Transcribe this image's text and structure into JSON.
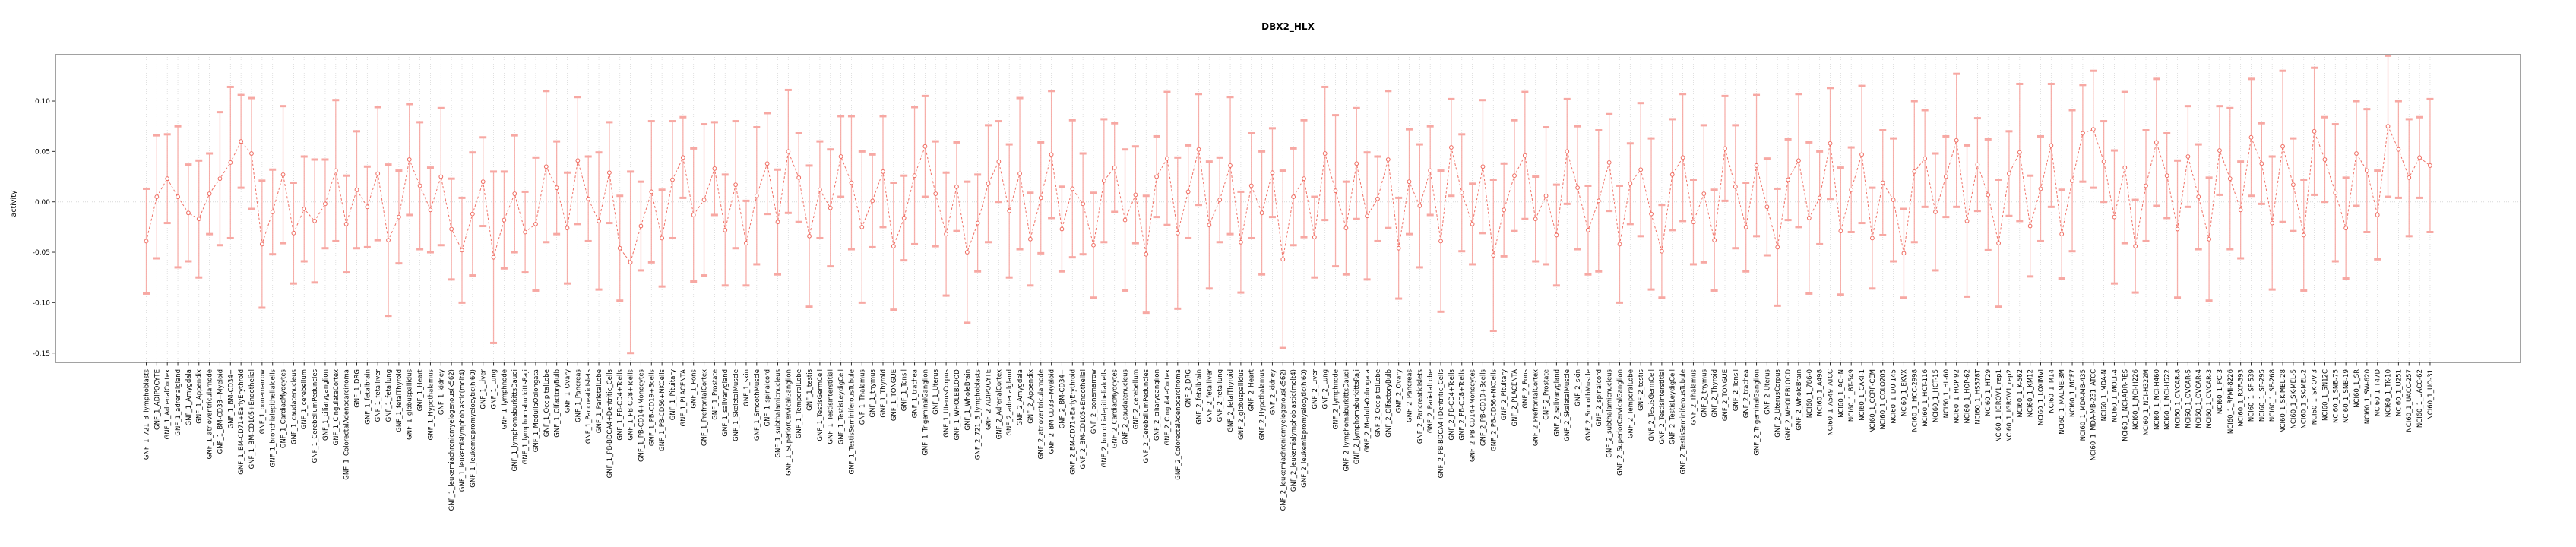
{
  "title": "DBX2_HLX",
  "chart_data": {
    "type": "line",
    "title": "DBX2_HLX",
    "xlabel": "",
    "ylabel": "activity",
    "ylim": [
      -0.159,
      0.146
    ],
    "yticks": [
      0.1,
      0.05,
      0.0,
      -0.05,
      -0.1,
      -0.15
    ],
    "grid": "dotted vertical gridline per category; dotted horizontal line at y=0",
    "legend_position": "none",
    "marker": "open-circle",
    "line_style": "dashed",
    "colors": {
      "line": "#ef6a5f",
      "marker": "#ef6a5f",
      "errorbar": "#f7a8a3",
      "gridline": "#d9d9d9",
      "box": "#8a8a8a"
    },
    "categories": [
      "GNF_1_721_B_lymphoblasts",
      "GNF_1_ADIPOCYTE",
      "GNF_1_AdrenalCortex",
      "GNF_1_adrenalgland",
      "GNF_1_Amygdala",
      "GNF_1_Appendix",
      "GNF_1_atrioventricularnode",
      "GNF_1_BM-CD33+Myeloid",
      "GNF_1_BM-CD34+",
      "GNF_1_BM-CD71+EarlyErythroid",
      "GNF_1_BM-CD105+Endothelial",
      "GNF_1_bonemarrow",
      "GNF_1_bronchialepithelialcells",
      "GNF_1_CardiacMyocytes",
      "GNF_1_caudatenucleus",
      "GNF_1_cerebellum",
      "GNF_1_CerebellumPeduncles",
      "GNF_1_ciliaryganglion",
      "GNF_1_CingulateCortex",
      "GNF_1_ColorectalAdenocarcinoma",
      "GNF_1_DRG",
      "GNF_1_fetalbrain",
      "GNF_1_fetalliver",
      "GNF_1_fetallung",
      "GNF_1_fetalThyroid",
      "GNF_1_globuspallidus",
      "GNF_1_Heart",
      "GNF_1_Hypothalamus",
      "GNF_1_kidney",
      "GNF_1_leukemiachronicmyelogenous(k562)",
      "GNF_1_leukemialymphoblastic(molt4)",
      "GNF_1_leukemiapromyelocytic(hl60)",
      "GNF_1_Liver",
      "GNF_1_Lung",
      "GNF_1_lymphnode",
      "GNF_1_lymphomaburkittsDaudi",
      "GNF_1_lymphomaburkittsRaji",
      "GNF_1_MedullaOblongata",
      "GNF_1_OccipitalLobe",
      "GNF_1_OlfactoryBulb",
      "GNF_1_Ovary",
      "GNF_1_Pancreas",
      "GNF_1_PancreaticIslets",
      "GNF_1_ParietalLobe",
      "GNF_1_PB-BDCA4+Dentritic_Cells",
      "GNF_1_PB-CD4+Tcells",
      "GNF_1_PB-CD8+Tcells",
      "GNF_1_PB-CD14+Monocytes",
      "GNF_1_PB-CD19+Bcells",
      "GNF_1_PB-CD56+NKCells",
      "GNF_1_Pituitary",
      "GNF_1_PLACENTA",
      "GNF_1_Pons",
      "GNF_1_PrefrontalCortex",
      "GNF_1_Prostate",
      "GNF_1_salivarygland",
      "GNF_1_SkeletalMuscle",
      "GNF_1_skin",
      "GNF_1_SmoothMuscle",
      "GNF_1_spinalcord",
      "GNF_1_subthalamicnucleus",
      "GNF_1_SuperiorCervicalGanglion",
      "GNF_1_TemporalLobe",
      "GNF_1_testis",
      "GNF_1_TestisGermCell",
      "GNF_1_TestisInterstitial",
      "GNF_1_TestisLeydigCell",
      "GNF_1_TestisSeminiferousTubule",
      "GNF_1_Thalamus",
      "GNF_1_thymus",
      "GNF_1_Thyroid",
      "GNF_1_TONGUE",
      "GNF_1_Tonsil",
      "GNF_1_trachea",
      "GNF_1_TrigeminalGanglion",
      "GNF_1_Uterus",
      "GNF_1_UterusCorpus",
      "GNF_1_WHOLEBLOOD",
      "GNF_1_WholeBrain",
      "GNF_2_721_B_lymphoblasts",
      "GNF_2_ADIPOCYTE",
      "GNF_2_AdrenalCortex",
      "GNF_2_adrenalgland",
      "GNF_2_Amygdala",
      "GNF_2_Appendix",
      "GNF_2_atrioventricularnode",
      "GNF_2_BM-CD33+Myeloid",
      "GNF_2_BM-CD34+",
      "GNF_2_BM-CD71+EarlyErythroid",
      "GNF_2_BM-CD105+Endothelial",
      "GNF_2_bonemarrow",
      "GNF_2_bronchialepithelialcells",
      "GNF_2_CardiacMyocytes",
      "GNF_2_caudatenucleus",
      "GNF_2_cerebellum",
      "GNF_2_CerebellumPeduncles",
      "GNF_2_ciliaryganglion",
      "GNF_2_CingulateCortex",
      "GNF_2_ColorectalAdenocarcinoma",
      "GNF_2_DRG",
      "GNF_2_fetalbrain",
      "GNF_2_fetalliver",
      "GNF_2_fetallung",
      "GNF_2_fetalThyroid",
      "GNF_2_globuspallidus",
      "GNF_2_Heart",
      "GNF_2_Hypothalamus",
      "GNF_2_kidney",
      "GNF_2_leukemiachronicmyelogenous(k562)",
      "GNF_2_leukemialymphoblastic(molt4)",
      "GNF_2_leukemiapromyelocytic(hl60)",
      "GNF_2_Liver",
      "GNF_2_Lung",
      "GNF_2_lymphnode",
      "GNF_2_lymphomaburkittsDaudi",
      "GNF_2_lymphomaburkittsRaji",
      "GNF_2_MedullaOblongata",
      "GNF_2_OccipitalLobe",
      "GNF_2_OlfactoryBulb",
      "GNF_2_Ovary",
      "GNF_2_Pancreas",
      "GNF_2_PancreaticIslets",
      "GNF_2_ParietalLobe",
      "GNF_2_PB-BDCA4+Dentritic_Cells",
      "GNF_2_PB-CD4+Tcells",
      "GNF_2_PB-CD8+Tcells",
      "GNF_2_PB-CD14+Monocytes",
      "GNF_2_PB-CD19+Bcells",
      "GNF_2_PB-CD56+NKCells",
      "GNF_2_Pituitary",
      "GNF_2_PLACENTA",
      "GNF_2_Pons",
      "GNF_2_PrefrontalCortex",
      "GNF_2_Prostate",
      "GNF_2_salivarygland",
      "GNF_2_SkeletalMuscle",
      "GNF_2_skin",
      "GNF_2_SmoothMuscle",
      "GNF_2_spinalcord",
      "GNF_2_subthalamicnucleus",
      "GNF_2_SuperiorCervicalGanglion",
      "GNF_2_TemporalLobe",
      "GNF_2_testis",
      "GNF_2_TestisGermCell",
      "GNF_2_TestisInterstitial",
      "GNF_2_TestisLeydigCell",
      "GNF_2_TestisSeminiferousTubule",
      "GNF_2_Thalamus",
      "GNF_2_thymus",
      "GNF_2_Thyroid",
      "GNF_2_TONGUE",
      "GNF_2_Tonsil",
      "GNF_2_trachea",
      "GNF_2_TrigeminalGanglion",
      "GNF_2_Uterus",
      "GNF_2_UterusCorpus",
      "GNF_2_WHOLEBLOOD",
      "GNF_2_WholeBrain",
      "NCI60_1_786-0",
      "NCI60_1_A498",
      "NCI60_1_A549_ATCC",
      "NCI60_1_ACHN",
      "NCI60_1_BT-549",
      "NCI60_1_CAKI-1",
      "NCI60_1_CCRF-CEM",
      "NCI60_1_COLO205",
      "NCI60_1_DU-145",
      "NCI60_1_EKVX",
      "NCI60_1_HCC-2998",
      "NCI60_1_HCT-116",
      "NCI60_1_HCT-15",
      "NCI60_1_HL-60",
      "NCI60_1_HOP-92",
      "NCI60_1_HOP-62",
      "NCI60_1_HS578T",
      "NCI60_1_HT29",
      "NCI60_1_IGROV1_rep1",
      "NCI60_1_IGROV1_rep2",
      "NCI60_1_K-562",
      "NCI60_1_KM12",
      "NCI60_1_LOXIMVI",
      "NCI60_1_M14",
      "NCI60_1_MALME-3M",
      "NCI60_1_MCF7",
      "NCI60_1_MDA-MB-435",
      "NCI60_1_MDA-MB-231_ATCC",
      "NCI60_1_MDA-N",
      "NCI60_1_MOLT-4",
      "NCI60_1_NCI-ADR-RES",
      "NCI60_1_NCI-H226",
      "NCI60_1_NCI-H322M",
      "NCI60_1_NCI-H460",
      "NCI60_1_NCI-H522",
      "NCI60_1_OVCAR-8",
      "NCI60_1_OVCAR-5",
      "NCI60_1_OVCAR-4",
      "NCI60_1_OVCAR-3",
      "NCI60_1_PC-3",
      "NCI60_1_RPMI-8226",
      "NCI60_1_RXF-393",
      "NCI60_1_SF-539",
      "NCI60_1_SF-295",
      "NCI60_1_SF-268",
      "NCI60_1_SK-MEL-28",
      "NCI60_1_SK-MEL-5",
      "NCI60_1_SK-MEL-2",
      "NCI60_1_SK-OV-3",
      "NCI60_1_SN12C",
      "NCI60_1_SNB-75",
      "NCI60_1_SNB-19",
      "NCI60_1_SR",
      "NCI60_1_SW-620",
      "NCI60_1_T47D",
      "NCI60_1_TK-10",
      "NCI60_1_U251",
      "NCI60_1_UACC-257",
      "NCI60_1_UACC-62",
      "NCI60_1_UO-31"
    ],
    "values": [
      -0.039,
      0.005,
      0.023,
      0.005,
      -0.011,
      -0.017,
      0.008,
      0.023,
      0.039,
      0.06,
      0.048,
      -0.042,
      -0.01,
      0.027,
      -0.031,
      -0.007,
      -0.019,
      -0.002,
      0.031,
      -0.022,
      0.012,
      -0.005,
      0.028,
      -0.038,
      -0.015,
      0.042,
      0.016,
      -0.008,
      0.025,
      -0.027,
      -0.048,
      -0.012,
      0.02,
      -0.055,
      -0.018,
      0.008,
      -0.03,
      -0.022,
      0.035,
      0.014,
      -0.026,
      0.041,
      0.003,
      -0.019,
      0.029,
      -0.046,
      -0.06,
      -0.024,
      0.01,
      -0.036,
      0.022,
      0.044,
      -0.013,
      0.002,
      0.033,
      -0.028,
      0.017,
      -0.041,
      0.006,
      0.038,
      -0.02,
      0.05,
      0.024,
      -0.034,
      0.012,
      -0.006,
      0.045,
      0.019,
      -0.025,
      0.001,
      0.03,
      -0.044,
      -0.016,
      0.026,
      0.055,
      0.008,
      -0.032,
      0.015,
      -0.05,
      -0.021,
      0.018,
      0.04,
      -0.009,
      0.028,
      -0.037,
      0.004,
      0.047,
      -0.027,
      0.013,
      -0.002,
      -0.043,
      0.021,
      0.034,
      -0.018,
      0.007,
      -0.052,
      0.025,
      0.043,
      -0.031,
      0.01,
      0.052,
      -0.023,
      0.002,
      0.036,
      -0.04,
      0.016,
      -0.011,
      0.029,
      -0.057,
      0.005,
      0.023,
      -0.035,
      0.048,
      0.011,
      -0.026,
      0.038,
      -0.014,
      0.003,
      0.042,
      -0.046,
      0.02,
      -0.004,
      0.031,
      -0.039,
      0.054,
      0.009,
      -0.022,
      0.035,
      -0.053,
      -0.008,
      0.026,
      0.046,
      -0.017,
      0.006,
      -0.033,
      0.05,
      0.014,
      -0.028,
      0.001,
      0.039,
      -0.042,
      0.018,
      0.032,
      -0.012,
      -0.049,
      0.027,
      0.044,
      -0.02,
      0.008,
      -0.038,
      0.053,
      0.015,
      -0.025,
      0.036,
      -0.005,
      -0.045,
      0.022,
      0.041,
      -0.016,
      0.004,
      0.058,
      -0.029,
      0.012,
      0.047,
      -0.036,
      0.019,
      0.002,
      -0.051,
      0.03,
      0.043,
      -0.01,
      0.025,
      0.061,
      -0.019,
      0.037,
      0.007,
      -0.041,
      0.028,
      0.049,
      -0.024,
      0.013,
      0.056,
      -0.032,
      0.021,
      0.068,
      0.072,
      0.04,
      -0.015,
      0.034,
      -0.044,
      0.016,
      0.059,
      0.026,
      -0.027,
      0.045,
      0.005,
      -0.037,
      0.051,
      0.023,
      -0.008,
      0.064,
      0.038,
      -0.021,
      0.055,
      0.017,
      -0.033,
      0.07,
      0.042,
      0.009,
      -0.026,
      0.048,
      0.031,
      -0.013,
      0.075,
      0.052,
      0.024,
      0.044,
      0.036
    ],
    "errors": [
      0.052,
      0.061,
      0.044,
      0.07,
      0.048,
      0.058,
      0.04,
      0.066,
      0.075,
      0.046,
      0.055,
      0.063,
      0.042,
      0.068,
      0.05,
      0.052,
      0.061,
      0.044,
      0.07,
      0.048,
      0.058,
      0.04,
      0.066,
      0.075,
      0.046,
      0.055,
      0.063,
      0.042,
      0.068,
      0.05,
      0.052,
      0.061,
      0.044,
      0.085,
      0.048,
      0.058,
      0.04,
      0.066,
      0.075,
      0.046,
      0.055,
      0.063,
      0.042,
      0.068,
      0.05,
      0.052,
      0.09,
      0.044,
      0.07,
      0.048,
      0.058,
      0.04,
      0.066,
      0.075,
      0.046,
      0.055,
      0.063,
      0.042,
      0.068,
      0.05,
      0.052,
      0.061,
      0.044,
      0.07,
      0.048,
      0.058,
      0.04,
      0.066,
      0.075,
      0.046,
      0.055,
      0.063,
      0.042,
      0.068,
      0.05,
      0.052,
      0.061,
      0.044,
      0.07,
      0.048,
      0.058,
      0.04,
      0.066,
      0.075,
      0.046,
      0.055,
      0.063,
      0.042,
      0.068,
      0.05,
      0.052,
      0.061,
      0.044,
      0.07,
      0.048,
      0.058,
      0.04,
      0.066,
      0.075,
      0.046,
      0.055,
      0.063,
      0.042,
      0.068,
      0.05,
      0.052,
      0.061,
      0.044,
      0.088,
      0.048,
      0.058,
      0.04,
      0.066,
      0.075,
      0.046,
      0.055,
      0.063,
      0.042,
      0.068,
      0.05,
      0.052,
      0.061,
      0.044,
      0.07,
      0.048,
      0.058,
      0.04,
      0.066,
      0.075,
      0.046,
      0.055,
      0.063,
      0.042,
      0.068,
      0.05,
      0.052,
      0.061,
      0.044,
      0.07,
      0.048,
      0.058,
      0.04,
      0.066,
      0.075,
      0.046,
      0.055,
      0.063,
      0.042,
      0.068,
      0.05,
      0.052,
      0.061,
      0.044,
      0.07,
      0.048,
      0.058,
      0.04,
      0.066,
      0.075,
      0.046,
      0.055,
      0.063,
      0.042,
      0.068,
      0.05,
      0.052,
      0.061,
      0.044,
      0.07,
      0.048,
      0.058,
      0.04,
      0.066,
      0.075,
      0.046,
      0.055,
      0.063,
      0.042,
      0.068,
      0.05,
      0.052,
      0.061,
      0.044,
      0.07,
      0.048,
      0.058,
      0.04,
      0.066,
      0.075,
      0.046,
      0.055,
      0.063,
      0.042,
      0.068,
      0.05,
      0.052,
      0.061,
      0.044,
      0.07,
      0.048,
      0.058,
      0.04,
      0.066,
      0.075,
      0.046,
      0.055,
      0.063,
      0.042,
      0.068,
      0.05,
      0.052,
      0.061,
      0.044,
      0.07,
      0.048,
      0.058,
      0.04,
      0.066
    ]
  }
}
